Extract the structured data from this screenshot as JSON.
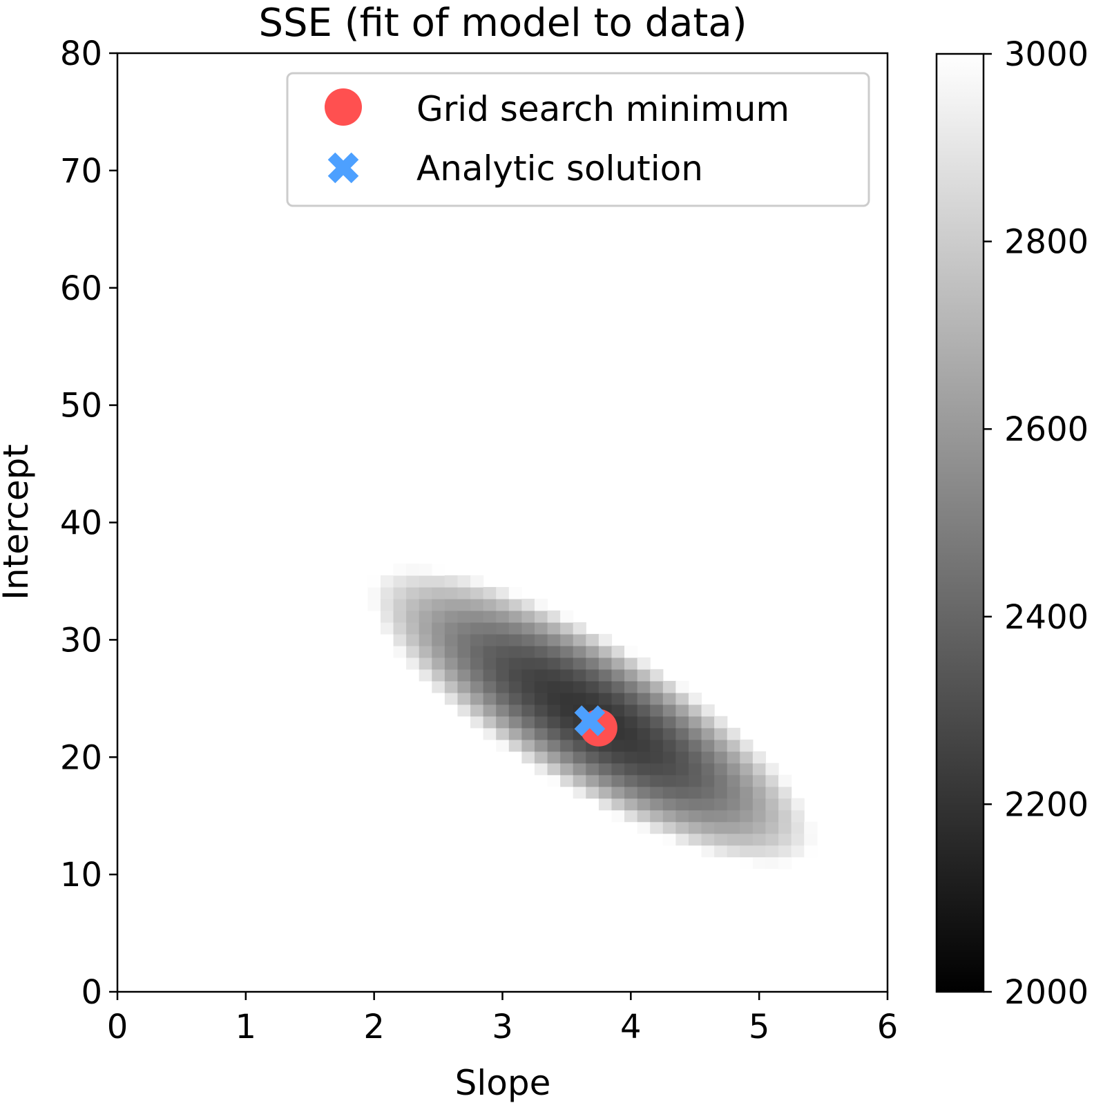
{
  "chart_data": {
    "type": "heatmap",
    "title": "SSE (fit of model to data)",
    "xlabel": "Slope",
    "ylabel": "Intercept",
    "xlim": [
      0,
      6
    ],
    "ylim": [
      0,
      80
    ],
    "x_ticks": [
      "0",
      "1",
      "2",
      "3",
      "4",
      "5",
      "6"
    ],
    "y_ticks": [
      "0",
      "10",
      "20",
      "30",
      "40",
      "50",
      "60",
      "70",
      "80"
    ],
    "colormap": "gray",
    "colorbar": {
      "range": [
        2000,
        3000
      ],
      "ticks": [
        "2000",
        "2200",
        "2400",
        "2600",
        "2800",
        "3000"
      ]
    },
    "heatmap": {
      "grid_x_step": 0.1,
      "grid_y_step": 1,
      "minimum_value": 2200,
      "center": [
        3.72,
        23
      ],
      "major_axis_direction": [
        1,
        -14
      ],
      "extent_along_major": [
        2.2,
        37
      ],
      "extent_along_major_end": [
        5.2,
        10
      ],
      "cap_value": 3000
    },
    "series": [
      {
        "name": "Grid search minimum",
        "marker": "circle",
        "color": "#ff5050",
        "x": 3.75,
        "y": 22.5
      },
      {
        "name": "Analytic solution",
        "marker": "x",
        "color": "#4da0ff",
        "x": 3.68,
        "y": 23.1
      }
    ],
    "legend": {
      "position": "top-right"
    }
  }
}
